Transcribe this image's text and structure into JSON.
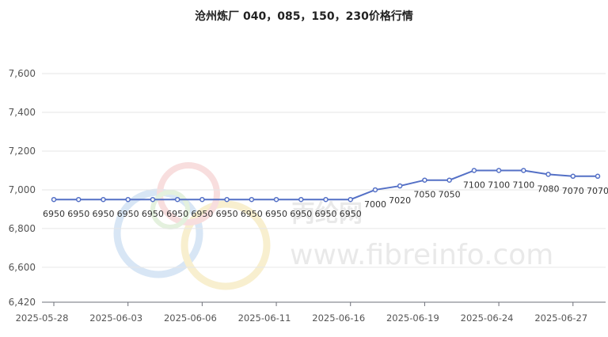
{
  "chart_data": {
    "type": "line",
    "title": "沧州炼厂 040，085，150，230价格行情",
    "xlabel": "",
    "ylabel": "",
    "ylim": [
      6420,
      7600
    ],
    "yticks": [
      "7,600",
      "7,400",
      "7,200",
      "7,000",
      "6,800",
      "6,600",
      "6,420"
    ],
    "ytick_values": [
      7600,
      7400,
      7200,
      7000,
      6800,
      6600,
      6420
    ],
    "xtick_labels": [
      "2025-05-28",
      "2025-06-03",
      "2025-06-06",
      "2025-06-11",
      "2025-06-16",
      "2025-06-19",
      "2025-06-24",
      "2025-06-27"
    ],
    "xtick_index": [
      0,
      3,
      6,
      9,
      12,
      15,
      18,
      21
    ],
    "grid": "horizontal",
    "legend": "none",
    "line_color": "#5470c6",
    "series": [
      {
        "values": [
          6950,
          6950,
          6950,
          6950,
          6950,
          6950,
          6950,
          6950,
          6950,
          6950,
          6950,
          6950,
          6950,
          7000,
          7020,
          7050,
          7050,
          7100,
          7100,
          7100,
          7080,
          7070,
          7070
        ],
        "labels": [
          "6950",
          "6950",
          "6950",
          "6950",
          "6950",
          "6950",
          "6950",
          "6950",
          "6950",
          "6950",
          "6950",
          "6950",
          "6950",
          "7000",
          "7020",
          "7050",
          "7050",
          "7100",
          "7100",
          "7100",
          "7080",
          "7070",
          "7070"
        ]
      }
    ]
  },
  "watermark": {
    "text_cn": "丙纶网",
    "text_url": "www.fibreinfo.com"
  }
}
